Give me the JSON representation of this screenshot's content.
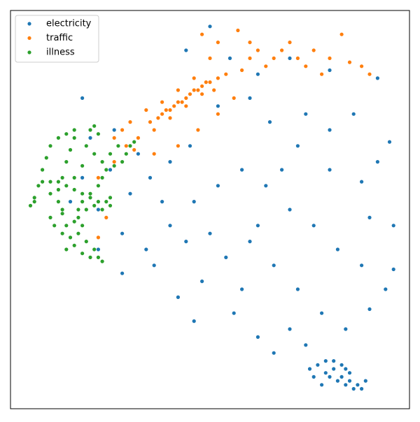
{
  "chart_data": {
    "type": "scatter",
    "xlim": [
      0,
      100
    ],
    "ylim": [
      0,
      100
    ],
    "legend": "upper left",
    "series": [
      {
        "name": "electricity",
        "color": "#1f77b4",
        "x": [
          75,
          77,
          79,
          80,
          81,
          82,
          83,
          84,
          85,
          86,
          87,
          88,
          79,
          81,
          83,
          76,
          85,
          89,
          78,
          84,
          50,
          44,
          55,
          62,
          70,
          80,
          92,
          95,
          92,
          88,
          80,
          72,
          65,
          60,
          52,
          45,
          40,
          35,
          30,
          25,
          22,
          28,
          34,
          40,
          46,
          52,
          58,
          64,
          70,
          76,
          82,
          88,
          94,
          96,
          90,
          84,
          78,
          72,
          66,
          60,
          54,
          48,
          42,
          46,
          56,
          62,
          66,
          74,
          70,
          58,
          50,
          38,
          32,
          26,
          20,
          18,
          15,
          22,
          28,
          36,
          44,
          68,
          74,
          86,
          90,
          96,
          80,
          62,
          18
        ],
        "values": [
          10,
          11,
          9,
          8,
          10,
          7,
          8,
          6,
          7,
          5,
          6,
          5,
          12,
          12,
          11,
          8,
          9,
          7,
          6,
          10,
          96,
          90,
          88,
          84,
          88,
          85,
          83,
          67,
          62,
          57,
          70,
          66,
          72,
          78,
          76,
          66,
          62,
          58,
          54,
          60,
          50,
          44,
          40,
          46,
          52,
          56,
          60,
          56,
          50,
          46,
          40,
          36,
          30,
          35,
          25,
          20,
          24,
          30,
          36,
          42,
          38,
          32,
          28,
          22,
          24,
          18,
          14,
          16,
          20,
          30,
          44,
          52,
          64,
          70,
          68,
          58,
          52,
          40,
          34,
          36,
          42,
          60,
          74,
          74,
          48,
          46,
          60,
          46,
          78
        ]
      },
      {
        "name": "traffic",
        "color": "#ff7f0e",
        "x": [
          35,
          37,
          38,
          39,
          40,
          41,
          42,
          43,
          44,
          45,
          46,
          47,
          48,
          49,
          50,
          52,
          54,
          36,
          40,
          44,
          48,
          51,
          38,
          42,
          46,
          34,
          30,
          28,
          26,
          29,
          32,
          31,
          36,
          42,
          47,
          52,
          56,
          58,
          60,
          62,
          64,
          66,
          68,
          70,
          72,
          74,
          76,
          78,
          80,
          83,
          85,
          88,
          90,
          57,
          60,
          52,
          50,
          48,
          26,
          22,
          22,
          24
        ],
        "values": [
          72,
          73,
          74,
          75,
          75,
          76,
          77,
          77,
          78,
          79,
          80,
          80,
          81,
          82,
          82,
          83,
          84,
          70,
          73,
          76,
          79,
          80,
          77,
          80,
          83,
          75,
          72,
          70,
          68,
          66,
          68,
          65,
          64,
          66,
          70,
          74,
          78,
          85,
          88,
          90,
          86,
          88,
          90,
          92,
          88,
          86,
          90,
          84,
          88,
          94,
          87,
          86,
          84,
          95,
          92,
          92,
          88,
          94,
          62,
          58,
          43,
          48
        ]
      },
      {
        "name": "illness",
        "color": "#2ca02c",
        "x": [
          5,
          6,
          7,
          8,
          9,
          10,
          12,
          14,
          16,
          16,
          15,
          14,
          13,
          12,
          12,
          13,
          14,
          15,
          16,
          18,
          20,
          22,
          23,
          21,
          19,
          17,
          16,
          17,
          18,
          20,
          22,
          23,
          24,
          26,
          28,
          29,
          30,
          31,
          27,
          25,
          23,
          21,
          19,
          20,
          21,
          22,
          8,
          10,
          12,
          14,
          16,
          18,
          20,
          22,
          24,
          25,
          25,
          23,
          21,
          19,
          17,
          11,
          10,
          13,
          14,
          13,
          18,
          10,
          6,
          16,
          18
        ],
        "values": [
          51,
          53,
          56,
          60,
          63,
          66,
          68,
          69,
          70,
          68,
          65,
          62,
          58,
          55,
          52,
          49,
          46,
          43,
          41,
          39,
          38,
          38,
          37,
          40,
          42,
          44,
          47,
          50,
          52,
          54,
          56,
          58,
          60,
          61,
          62,
          64,
          66,
          67,
          66,
          64,
          62,
          64,
          66,
          70,
          71,
          69,
          57,
          57,
          57,
          56,
          55,
          54,
          53,
          52,
          52,
          53,
          51,
          50,
          51,
          50,
          48,
          46,
          48,
          44,
          40,
          50,
          46,
          54,
          52,
          58,
          61
        ]
      }
    ]
  }
}
